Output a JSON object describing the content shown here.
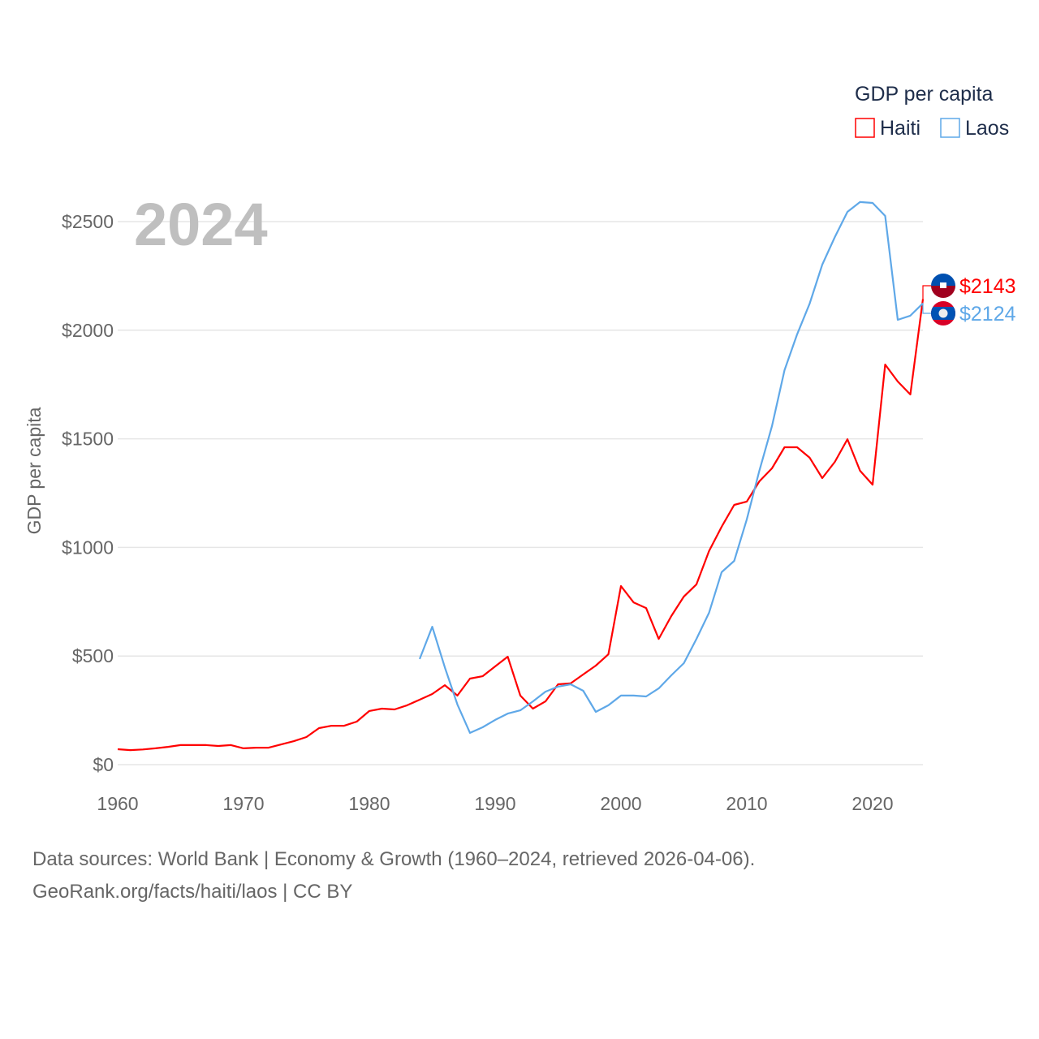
{
  "chart_data": {
    "type": "line",
    "title": "GDP per capita",
    "year_label": "2024",
    "xlabel": "",
    "ylabel": "GDP per capita",
    "xlim": [
      1960,
      2024
    ],
    "ylim": [
      0,
      2600
    ],
    "x_ticks": [
      1960,
      1970,
      1980,
      1990,
      2000,
      2010,
      2020
    ],
    "y_ticks": [
      0,
      500,
      1000,
      1500,
      2000,
      2500
    ],
    "y_tick_labels": [
      "$0",
      "$500",
      "$1000",
      "$1500",
      "$2000",
      "$2500"
    ],
    "grid": true,
    "legend_position": "top-right",
    "series": [
      {
        "name": "Haiti",
        "color": "#ff0000",
        "end_label": "$2143",
        "flag": "haiti-flag",
        "start_year": 1960,
        "values": [
          71,
          67,
          70,
          75,
          82,
          90,
          90,
          90,
          86,
          90,
          75,
          78,
          78,
          93,
          108,
          127,
          168,
          179,
          179,
          198,
          247,
          258,
          254,
          273,
          299,
          325,
          366,
          318,
          396,
          407,
          452,
          497,
          318,
          258,
          291,
          370,
          374,
          415,
          456,
          508,
          822,
          747,
          721,
          579,
          684,
          774,
          830,
          983,
          1095,
          1196,
          1211,
          1304,
          1364,
          1461,
          1461,
          1413,
          1319,
          1394,
          1498,
          1353,
          1289,
          1842,
          1764,
          1704,
          2143
        ]
      },
      {
        "name": "Laos",
        "color": "#5fa8e8",
        "end_label": "$2124",
        "flag": "laos-flag",
        "start_year": 1984,
        "values": [
          486,
          635,
          448,
          277,
          146,
          172,
          206,
          235,
          250,
          291,
          336,
          359,
          370,
          340,
          243,
          273,
          318,
          318,
          314,
          351,
          411,
          467,
          579,
          699,
          886,
          938,
          1129,
          1353,
          1558,
          1816,
          1981,
          2123,
          2302,
          2429,
          2545,
          2590,
          2586,
          2526,
          2048,
          2067,
          2124
        ]
      }
    ]
  },
  "footer": {
    "line1": "Data sources: World Bank | Economy & Growth (1960–2024, retrieved 2026-04-06).",
    "line2": "GeoRank.org/facts/haiti/laos | CC BY"
  }
}
